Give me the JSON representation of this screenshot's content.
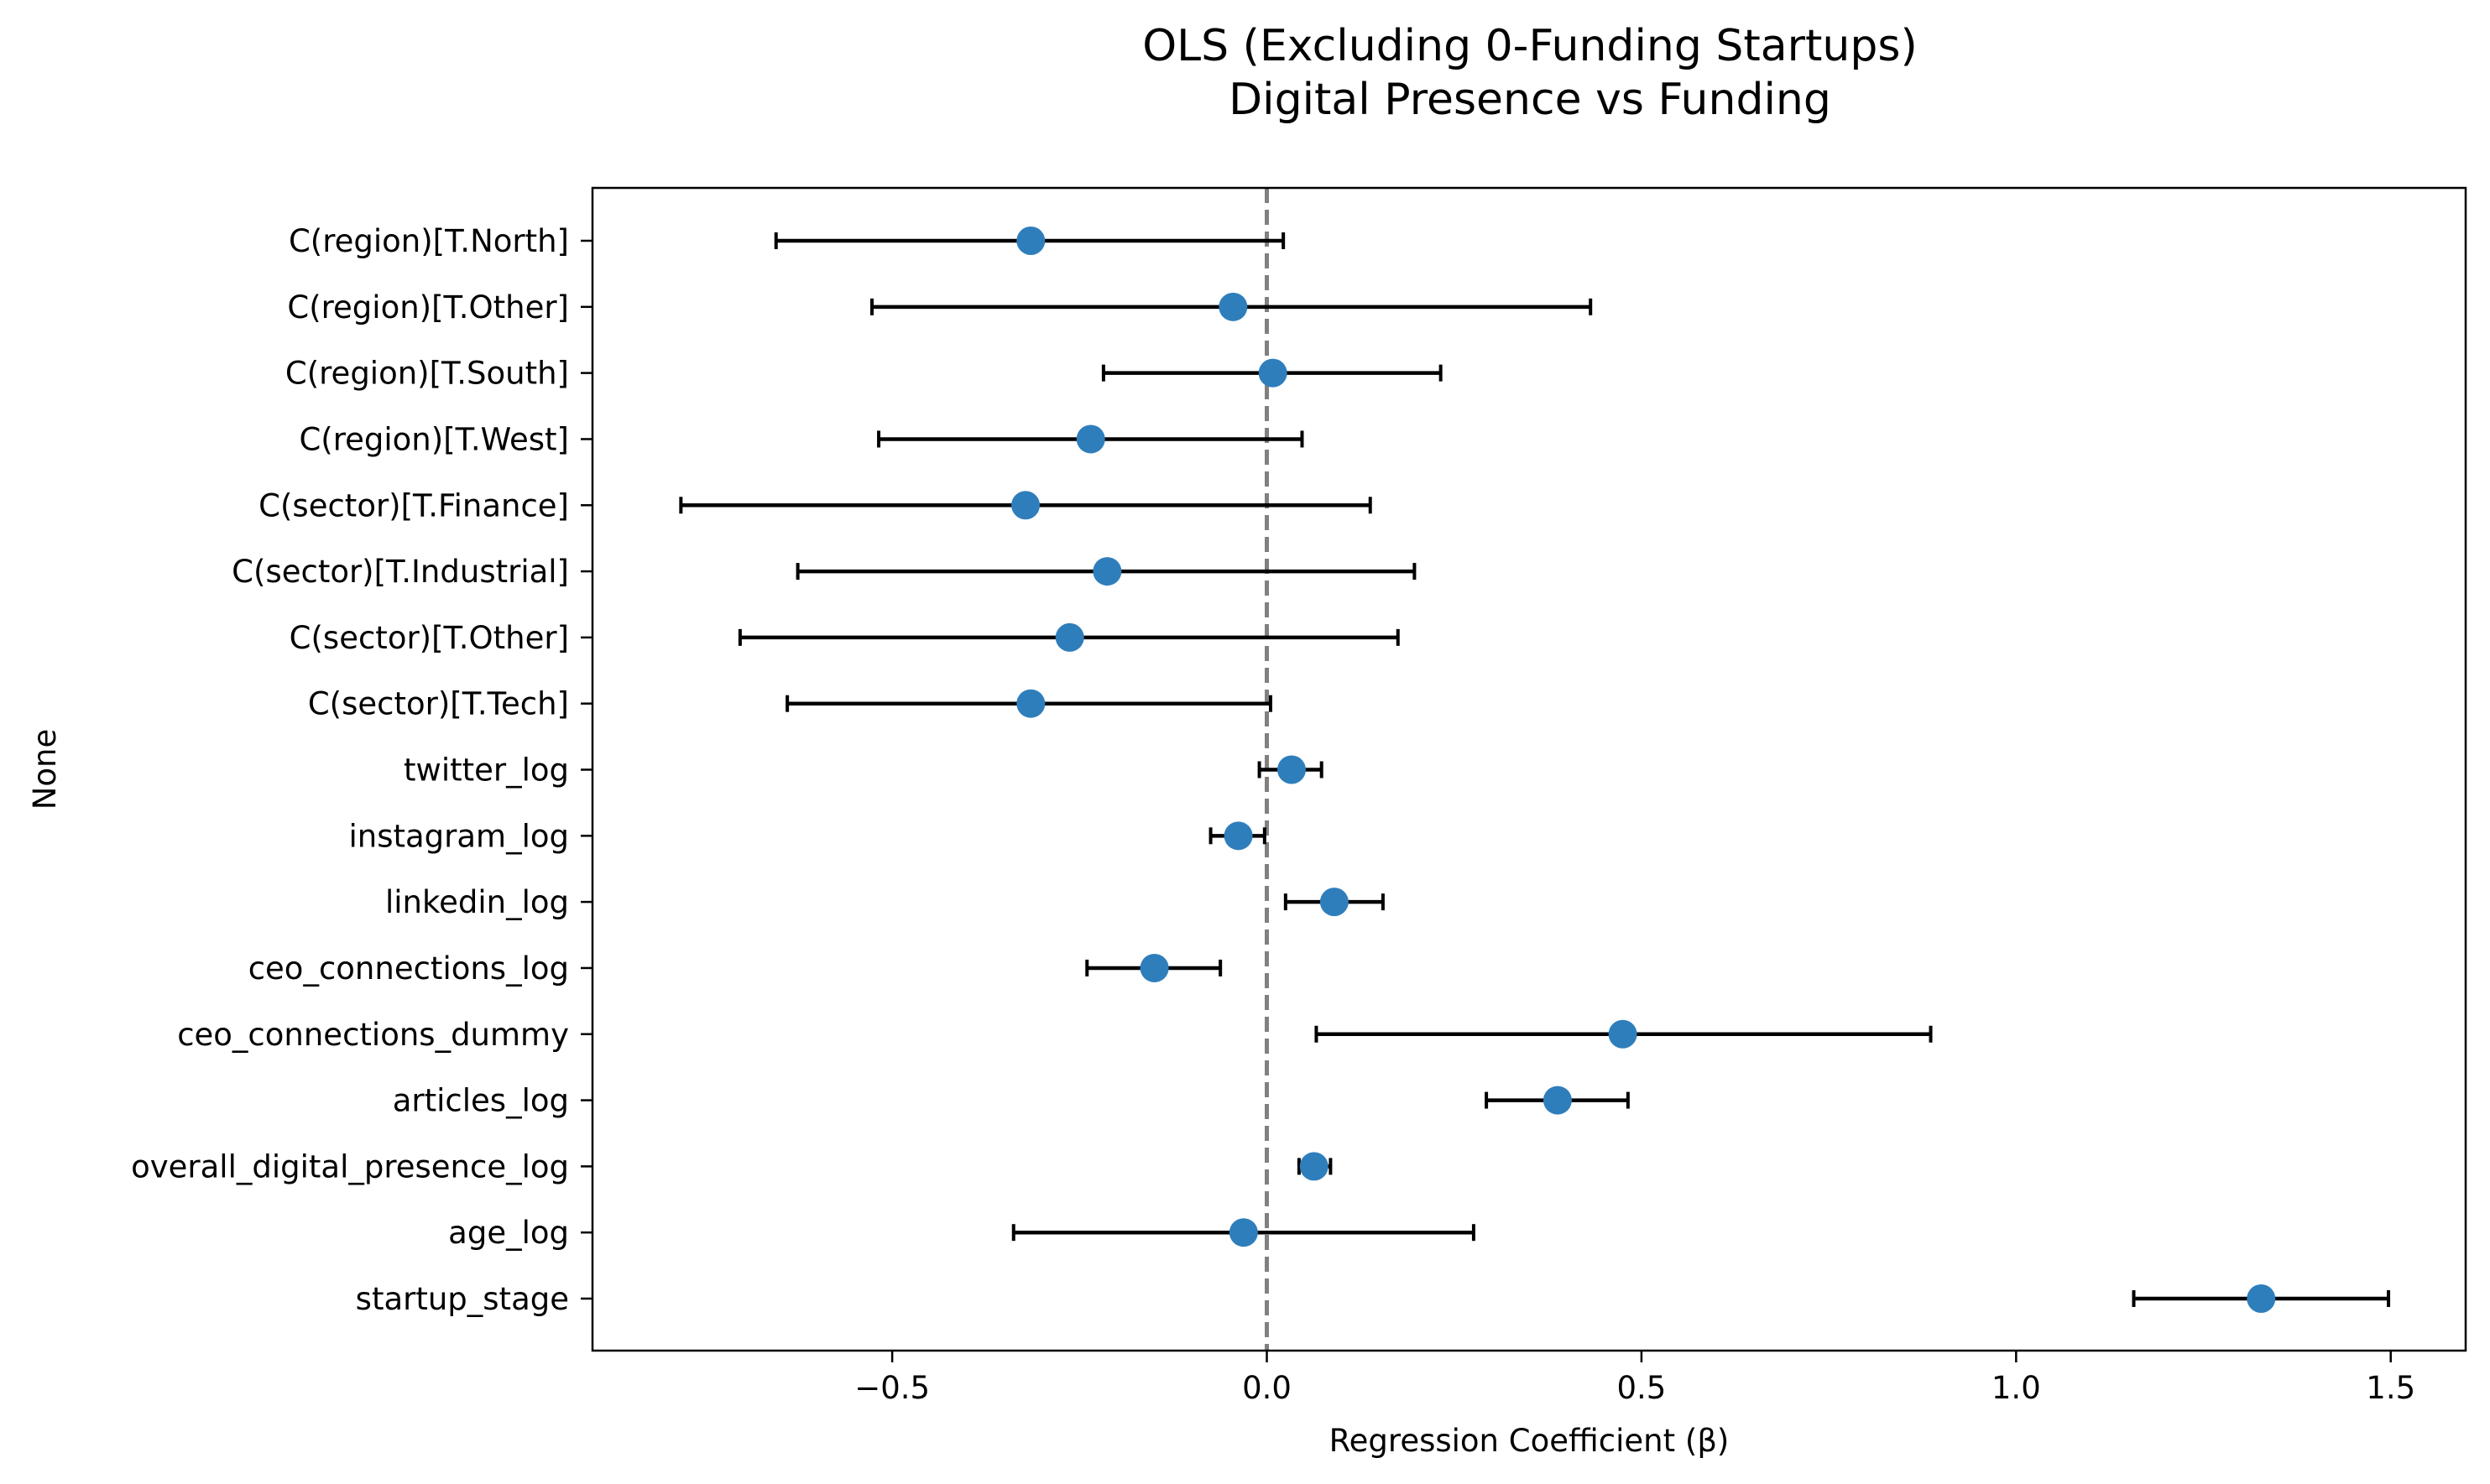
{
  "chart_data": {
    "type": "scatter",
    "title_lines": [
      "OLS (Excluding 0-Funding Startups)",
      "Digital Presence vs Funding"
    ],
    "xlabel": "Regression Coefficient (β)",
    "ylabel": "None",
    "xlim": [
      -0.9,
      1.6
    ],
    "xticks": [
      -0.5,
      0.0,
      0.5,
      1.0,
      1.5
    ],
    "xtick_labels": [
      "−0.5",
      "0.0",
      "0.5",
      "1.0",
      "1.5"
    ],
    "reference_line": 0.0,
    "grid": false,
    "point_color": "#2f7ebc",
    "errorbar_color": "#000000",
    "reference_line_color": "#808080",
    "points": [
      {
        "label": "C(region)[T.North]",
        "coef": -0.315,
        "ci_low": -0.655,
        "ci_high": 0.022
      },
      {
        "label": "C(region)[T.Other]",
        "coef": -0.045,
        "ci_low": -0.527,
        "ci_high": 0.432
      },
      {
        "label": "C(region)[T.South]",
        "coef": 0.008,
        "ci_low": -0.218,
        "ci_high": 0.232
      },
      {
        "label": "C(region)[T.West]",
        "coef": -0.235,
        "ci_low": -0.518,
        "ci_high": 0.047
      },
      {
        "label": "C(sector)[T.Finance]",
        "coef": -0.322,
        "ci_low": -0.782,
        "ci_high": 0.138
      },
      {
        "label": "C(sector)[T.Industrial]",
        "coef": -0.213,
        "ci_low": -0.626,
        "ci_high": 0.197
      },
      {
        "label": "C(sector)[T.Other]",
        "coef": -0.263,
        "ci_low": -0.703,
        "ci_high": 0.175
      },
      {
        "label": "C(sector)[T.Tech]",
        "coef": -0.315,
        "ci_low": -0.64,
        "ci_high": 0.005
      },
      {
        "label": "twitter_log",
        "coef": 0.033,
        "ci_low": -0.01,
        "ci_high": 0.073
      },
      {
        "label": "instagram_log",
        "coef": -0.038,
        "ci_low": -0.075,
        "ci_high": -0.003
      },
      {
        "label": "linkedin_log",
        "coef": 0.09,
        "ci_low": 0.025,
        "ci_high": 0.155
      },
      {
        "label": "ceo_connections_log",
        "coef": -0.15,
        "ci_low": -0.24,
        "ci_high": -0.062
      },
      {
        "label": "ceo_connections_dummy",
        "coef": 0.475,
        "ci_low": 0.066,
        "ci_high": 0.886
      },
      {
        "label": "articles_log",
        "coef": 0.388,
        "ci_low": 0.293,
        "ci_high": 0.482
      },
      {
        "label": "overall_digital_presence_log",
        "coef": 0.063,
        "ci_low": 0.043,
        "ci_high": 0.085
      },
      {
        "label": "age_log",
        "coef": -0.031,
        "ci_low": -0.338,
        "ci_high": 0.276
      },
      {
        "label": "startup_stage",
        "coef": 1.327,
        "ci_low": 1.157,
        "ci_high": 1.497
      }
    ]
  }
}
